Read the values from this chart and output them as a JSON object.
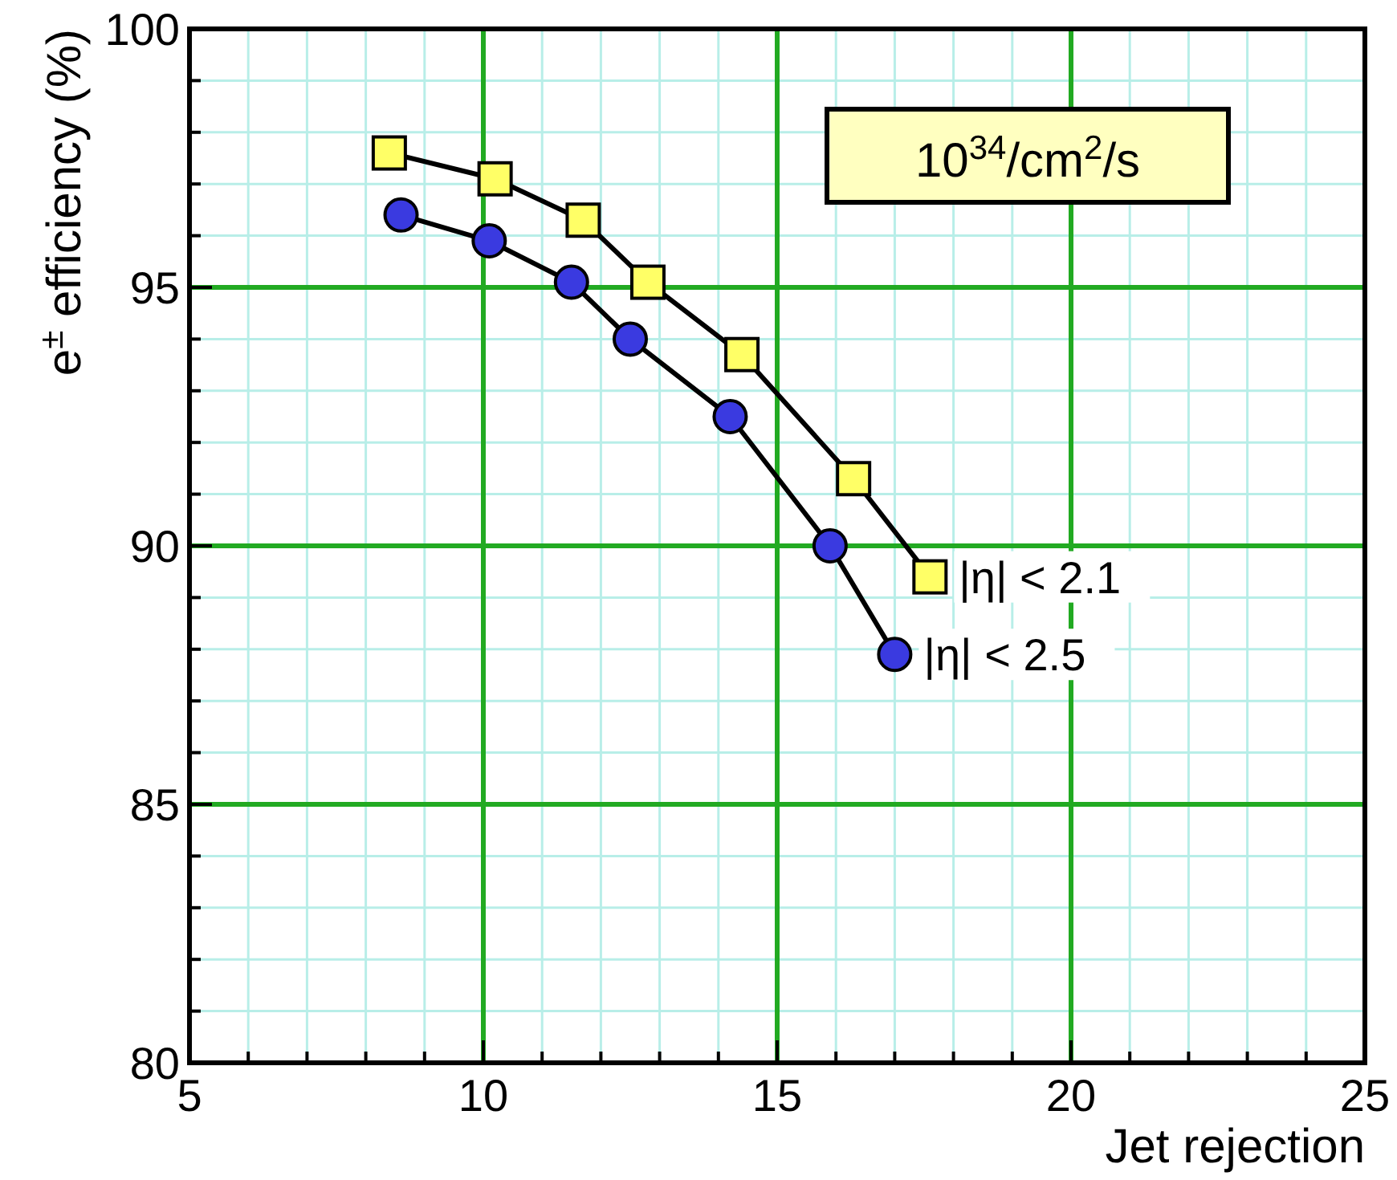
{
  "chart_data": {
    "type": "line",
    "xlabel": "Jet rejection",
    "ylabel": "e$^{±}$ efficiency (%)",
    "annotations": [
      "10$^{34}$/cm$^{2}$/s"
    ],
    "xlim": [
      5,
      25
    ],
    "xticks": [
      5,
      {
        "value": 6,
        "label": null
      },
      {
        "value": 7,
        "label": null
      },
      {
        "value": 8,
        "label": null
      },
      {
        "value": 9,
        "label": null
      },
      10,
      {
        "value": 11,
        "label": null
      },
      {
        "value": 12,
        "label": null
      },
      {
        "value": 13,
        "label": null
      },
      {
        "value": 14,
        "label": null
      },
      15,
      {
        "value": 16,
        "label": null
      },
      {
        "value": 17,
        "label": null
      },
      {
        "value": 18,
        "label": null
      },
      {
        "value": 19,
        "label": null
      },
      20,
      {
        "value": 21,
        "label": null
      },
      {
        "value": 22,
        "label": null
      },
      {
        "value": 23,
        "label": null
      },
      {
        "value": 24,
        "label": null
      },
      25
    ],
    "ylim": [
      80,
      100
    ],
    "yticks": [
      80,
      {
        "value": 81,
        "label": null
      },
      {
        "value": 82,
        "label": null
      },
      {
        "value": 83,
        "label": null
      },
      {
        "value": 84,
        "label": null
      },
      85,
      {
        "value": 86,
        "label": null
      },
      {
        "value": 87,
        "label": null
      },
      {
        "value": 88,
        "label": null
      },
      {
        "value": 89,
        "label": null
      },
      90,
      {
        "value": 91,
        "label": null
      },
      {
        "value": 92,
        "label": null
      },
      {
        "value": 93,
        "label": null
      },
      {
        "value": 94,
        "label": null
      },
      95,
      {
        "value": 96,
        "label": null
      },
      {
        "value": 97,
        "label": null
      },
      {
        "value": 98,
        "label": null
      },
      {
        "value": 99,
        "label": null
      },
      100
    ],
    "grid": true,
    "line_style": "solid",
    "series": [
      {
        "name": "|η| < 2.1",
        "color": "#ffff66",
        "marker": "square",
        "x": [
          8.4,
          10.2,
          11.7,
          12.8,
          14.4,
          16.3,
          17.6
        ],
        "values": [
          97.6,
          97.1,
          96.3,
          95.1,
          93.7,
          91.3,
          89.4
        ]
      },
      {
        "name": "|η| < 2.5",
        "color": "#3a3ae0",
        "marker": "circle",
        "x": [
          8.6,
          10.1,
          11.5,
          12.5,
          14.2,
          15.9,
          17.0
        ],
        "values": [
          96.4,
          95.9,
          95.1,
          94.0,
          92.5,
          90.0,
          87.9
        ]
      }
    ]
  }
}
